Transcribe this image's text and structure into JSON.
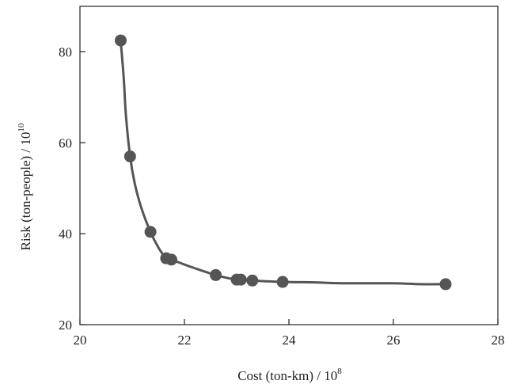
{
  "chart_data": {
    "type": "scatter",
    "title": "",
    "xlabel": "Cost (ton-km) / 10",
    "xlabel_exponent": "8",
    "ylabel": "Risk (ton-people) / 10",
    "ylabel_exponent": "10",
    "xlim": [
      20,
      28
    ],
    "ylim": [
      20,
      90
    ],
    "xticks": [
      20,
      22,
      24,
      26,
      28
    ],
    "yticks": [
      20,
      40,
      60,
      80
    ],
    "grid": false,
    "legend": "none",
    "series": [
      {
        "marker_color": "#555555",
        "line_color": "#555555",
        "points": [
          {
            "x": 20.78,
            "y": 82.5
          },
          {
            "x": 20.96,
            "y": 57.0
          },
          {
            "x": 21.35,
            "y": 40.4
          },
          {
            "x": 21.65,
            "y": 34.6
          },
          {
            "x": 21.75,
            "y": 34.3
          },
          {
            "x": 22.6,
            "y": 30.9
          },
          {
            "x": 23.0,
            "y": 29.9
          },
          {
            "x": 23.08,
            "y": 29.9
          },
          {
            "x": 23.3,
            "y": 29.7
          },
          {
            "x": 23.88,
            "y": 29.4
          },
          {
            "x": 27.0,
            "y": 28.9
          }
        ],
        "curve": [
          {
            "x": 20.78,
            "y": 82.5
          },
          {
            "x": 20.84,
            "y": 74.0
          },
          {
            "x": 20.88,
            "y": 66.0
          },
          {
            "x": 20.96,
            "y": 57.0
          },
          {
            "x": 21.05,
            "y": 51.0
          },
          {
            "x": 21.18,
            "y": 45.5
          },
          {
            "x": 21.35,
            "y": 40.4
          },
          {
            "x": 21.5,
            "y": 37.0
          },
          {
            "x": 21.65,
            "y": 34.6
          },
          {
            "x": 21.75,
            "y": 34.3
          },
          {
            "x": 22.1,
            "y": 32.8
          },
          {
            "x": 22.6,
            "y": 30.9
          },
          {
            "x": 23.0,
            "y": 29.9
          },
          {
            "x": 23.3,
            "y": 29.7
          },
          {
            "x": 23.88,
            "y": 29.4
          },
          {
            "x": 24.5,
            "y": 29.3
          },
          {
            "x": 25.0,
            "y": 29.1
          },
          {
            "x": 26.0,
            "y": 29.1
          },
          {
            "x": 26.5,
            "y": 28.9
          },
          {
            "x": 27.0,
            "y": 28.9
          }
        ]
      }
    ]
  }
}
